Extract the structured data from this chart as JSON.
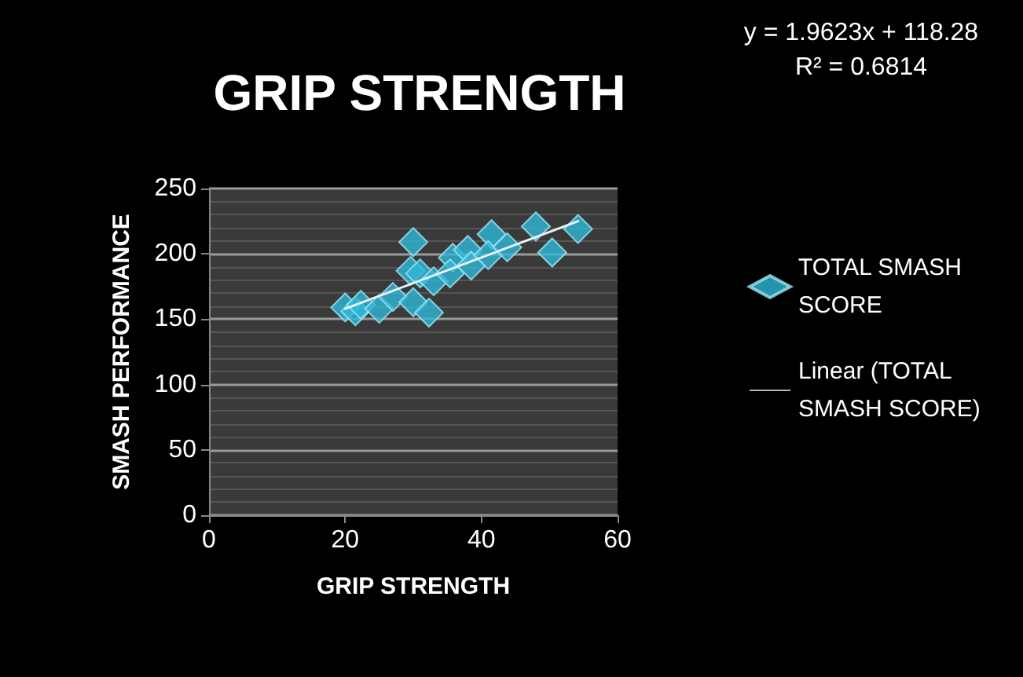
{
  "chart_data": {
    "type": "scatter",
    "title": "GRIP STRENGTH",
    "xlabel": "GRIP STRENGTH",
    "ylabel": "SMASH PERFORMANCE",
    "annotations": [
      "y = 1.9623x + 118.28",
      "R² = 0.6814"
    ],
    "series": [
      {
        "name": "TOTAL SMASH SCORE",
        "color": "#2fb8d8",
        "marker": "diamond",
        "x": [
          20,
          21.5,
          22.3,
          25,
          27,
          30,
          29.6,
          30,
          32.3,
          31,
          33,
          35.8,
          35.4,
          38,
          38.5,
          41.5,
          41,
          43.8,
          48,
          50.4,
          54.2
        ],
        "values": [
          159,
          156,
          161,
          158,
          167,
          209,
          187,
          163,
          155,
          185,
          179,
          197,
          185,
          203,
          191,
          215,
          199,
          205,
          221,
          201,
          219
        ]
      },
      {
        "name": "Linear (TOTAL SMASH SCORE)",
        "type": "line",
        "color": "#e8f4f8",
        "line_style": "solid",
        "marker": "none",
        "x": [
          20,
          54.2
        ],
        "values": [
          158,
          225
        ]
      }
    ],
    "xlim": [
      0,
      60
    ],
    "xticks": [
      0,
      20,
      40,
      60
    ],
    "ylim": [
      0,
      250
    ],
    "yticks": [
      0,
      50,
      100,
      150,
      200,
      250
    ],
    "grid": "y",
    "legend": "right"
  }
}
